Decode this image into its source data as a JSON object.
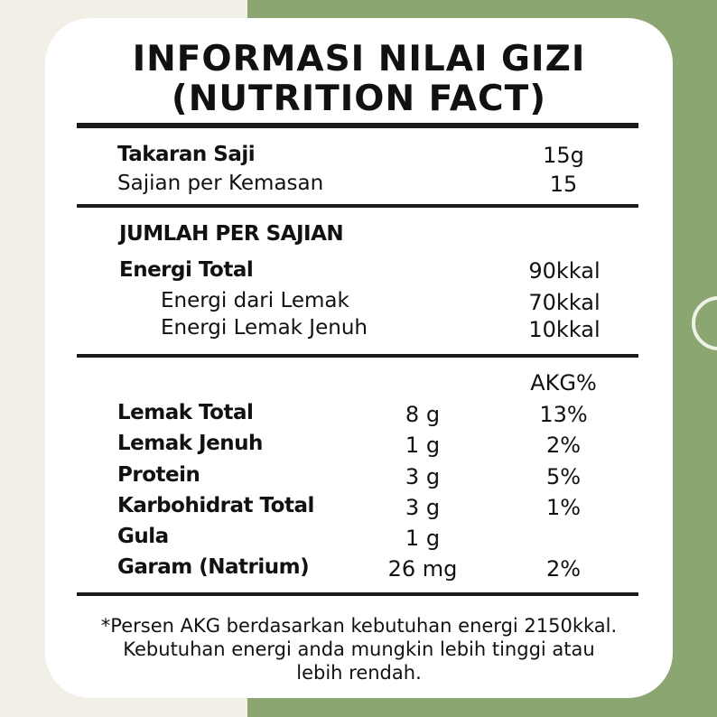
{
  "title": {
    "line1": "INFORMASI NILAI GIZI",
    "line2": "(NUTRITION FACT)"
  },
  "serving": {
    "size_label": "Takaran Saji",
    "size_value": "15g",
    "per_pack_label": "Sajian per Kemasan",
    "per_pack_value": "15"
  },
  "amount_heading": "JUMLAH PER SAJIAN",
  "energy": {
    "total_label": "Energi Total",
    "total_value": "90kkal",
    "fat_label": "Energi dari Lemak",
    "fat_value": "70kkal",
    "sat_label": "Energi Lemak Jenuh",
    "sat_value": "10kkal"
  },
  "akg_header": "AKG%",
  "nutrients": [
    {
      "name": "Lemak Total",
      "amount": "8 g",
      "akg": "13%"
    },
    {
      "name": "Lemak Jenuh",
      "amount": "1 g",
      "akg": "2%"
    },
    {
      "name": "Protein",
      "amount": "3 g",
      "akg": "5%"
    },
    {
      "name": "Karbohidrat Total",
      "amount": "3 g",
      "akg": "1%"
    },
    {
      "name": "Gula",
      "amount": "1 g",
      "akg": ""
    },
    {
      "name": "Garam (Natrium)",
      "amount": "26 mg",
      "akg": "2%"
    }
  ],
  "footnote": {
    "line1": "*Persen AKG berdasarkan kebutuhan energi 2150kkal.",
    "line2": "Kebutuhan energi anda mungkin lebih tinggi atau",
    "line3": "lebih rendah."
  },
  "colors": {
    "page_left": "#f2efe6",
    "page_right": "#8ba670",
    "card": "#ffffff",
    "text": "#111111"
  }
}
